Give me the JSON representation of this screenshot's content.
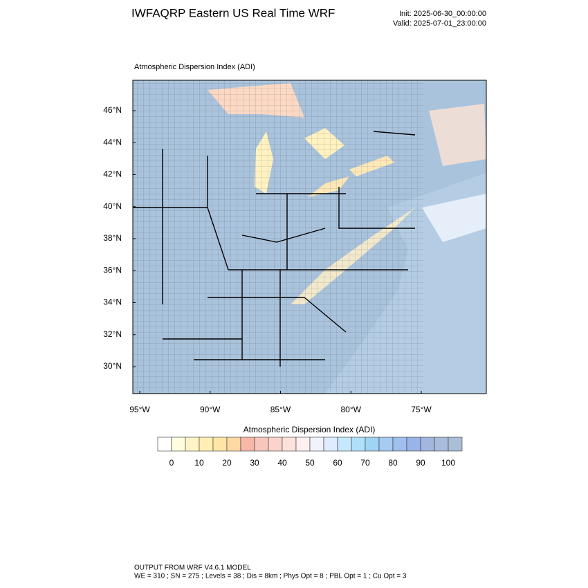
{
  "header": {
    "title": "IWFAQRP Eastern US Real Time WRF",
    "init": "Init: 2025-06-30_00:00:00",
    "valid": "Valid: 2025-07-01_23:00:00"
  },
  "map": {
    "title": "Atmospheric Dispersion Index   (ADI)",
    "lat_labels": [
      "46°N",
      "44°N",
      "42°N",
      "40°N",
      "38°N",
      "36°N",
      "34°N",
      "32°N",
      "30°N"
    ],
    "lon_labels": [
      "95°W",
      "90°W",
      "85°W",
      "80°W",
      "75°W"
    ]
  },
  "colorbar": {
    "title": "Atmospheric Dispersion Index  (ADI)",
    "labels": [
      "0",
      "10",
      "20",
      "30",
      "40",
      "50",
      "60",
      "70",
      "80",
      "90",
      "100"
    ],
    "colors": [
      "#ffffff",
      "#fffde0",
      "#fff5c4",
      "#ffefb4",
      "#ffe6a6",
      "#ffd9a4",
      "#f7b8a8",
      "#f8c6bc",
      "#fad4cc",
      "#fce2dc",
      "#fdf0ee",
      "#f2f2ff",
      "#e0ebff",
      "#c6e8ff",
      "#afe0fb",
      "#a0d4f4",
      "#a5cbf2",
      "#a0bfee",
      "#98b4e8",
      "#a2b6e0",
      "#a8bddb",
      "#aabfd6"
    ]
  },
  "footer": {
    "line1": "OUTPUT FROM WRF V4.6.1 MODEL",
    "line2": "WE = 310 ; SN = 275 ; Levels = 38 ; Dis = 8km ; Phys Opt = 8 ; PBL Opt = 1 ; Cu Opt = 3"
  }
}
